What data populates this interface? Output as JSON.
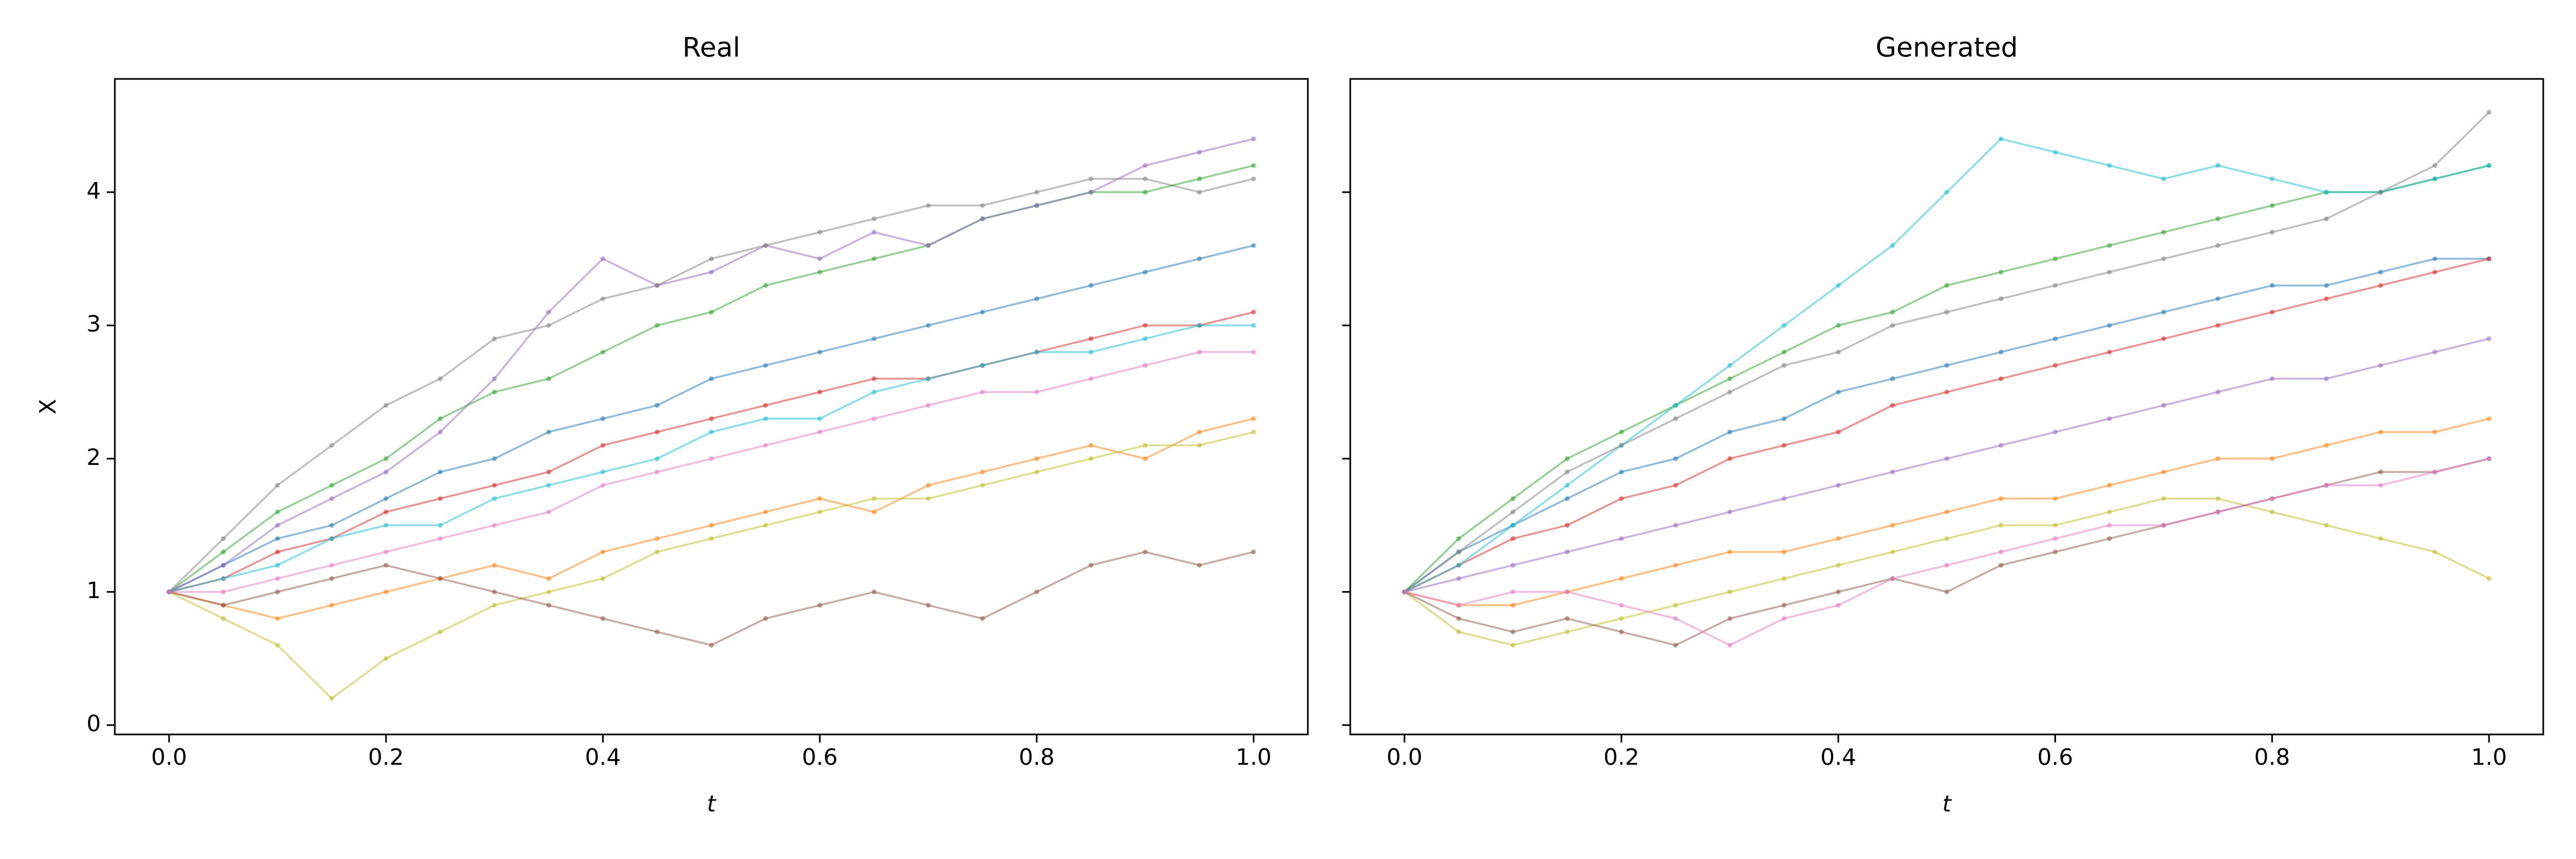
{
  "chart_data": [
    {
      "type": "line",
      "title": "Real",
      "x_label": "t",
      "y_label": "X",
      "x": [
        0,
        0.05,
        0.1,
        0.15,
        0.2,
        0.25,
        0.3,
        0.35,
        0.4,
        0.45,
        0.5,
        0.55,
        0.6,
        0.65,
        0.7,
        0.75,
        0.8,
        0.85,
        0.9,
        0.95,
        1.0
      ],
      "xlim": [
        -0.05,
        1.05
      ],
      "ylim": [
        -0.07,
        4.85
      ],
      "xticks": [
        {
          "value": 0,
          "label": "0.0"
        },
        {
          "value": 0.2,
          "label": "0.2"
        },
        {
          "value": 0.4,
          "label": "0.4"
        },
        {
          "value": 0.6,
          "label": "0.6"
        },
        {
          "value": 0.8,
          "label": "0.8"
        },
        {
          "value": 1.0,
          "label": "1.0"
        }
      ],
      "yticks": [
        0,
        1,
        2,
        3,
        4
      ],
      "series": [
        {
          "color": "#1f77b4",
          "values": [
            1,
            1.2,
            1.4,
            1.5,
            1.7,
            1.9,
            2.0,
            2.2,
            2.3,
            2.4,
            2.6,
            2.7,
            2.8,
            2.9,
            3.0,
            3.1,
            3.2,
            3.3,
            3.4,
            3.5,
            3.6
          ]
        },
        {
          "color": "#ff7f0e",
          "values": [
            1,
            0.9,
            0.8,
            0.9,
            1.0,
            1.1,
            1.2,
            1.1,
            1.3,
            1.4,
            1.5,
            1.6,
            1.7,
            1.6,
            1.8,
            1.9,
            2.0,
            2.1,
            2.0,
            2.2,
            2.3
          ]
        },
        {
          "color": "#2ca02c",
          "values": [
            1,
            1.3,
            1.6,
            1.8,
            2.0,
            2.3,
            2.5,
            2.6,
            2.8,
            3.0,
            3.1,
            3.3,
            3.4,
            3.5,
            3.6,
            3.8,
            3.9,
            4.0,
            4.0,
            4.1,
            4.2
          ]
        },
        {
          "color": "#bcbd22",
          "values": [
            1,
            0.8,
            0.6,
            0.2,
            0.5,
            0.7,
            0.9,
            1.0,
            1.1,
            1.3,
            1.4,
            1.5,
            1.6,
            1.7,
            1.7,
            1.8,
            1.9,
            2.0,
            2.1,
            2.1,
            2.2
          ]
        },
        {
          "color": "#d62728",
          "values": [
            1,
            1.1,
            1.3,
            1.4,
            1.6,
            1.7,
            1.8,
            1.9,
            2.1,
            2.2,
            2.3,
            2.4,
            2.5,
            2.6,
            2.6,
            2.7,
            2.8,
            2.9,
            3.0,
            3.0,
            3.1
          ]
        },
        {
          "color": "#9467bd",
          "values": [
            1,
            1.2,
            1.5,
            1.7,
            1.9,
            2.2,
            2.6,
            3.1,
            3.5,
            3.3,
            3.4,
            3.6,
            3.5,
            3.7,
            3.6,
            3.8,
            3.9,
            4.0,
            4.2,
            4.3,
            4.4
          ]
        },
        {
          "color": "#8c564b",
          "values": [
            1,
            0.9,
            1.0,
            1.1,
            1.2,
            1.1,
            1.0,
            0.9,
            0.8,
            0.7,
            0.6,
            0.8,
            0.9,
            1.0,
            0.9,
            0.8,
            1.0,
            1.2,
            1.3,
            1.2,
            1.3
          ]
        },
        {
          "color": "#17becf",
          "values": [
            1,
            1.1,
            1.2,
            1.4,
            1.5,
            1.5,
            1.7,
            1.8,
            1.9,
            2.0,
            2.2,
            2.3,
            2.3,
            2.5,
            2.6,
            2.7,
            2.8,
            2.8,
            2.9,
            3.0,
            3.0
          ]
        },
        {
          "color": "#7f7f7f",
          "values": [
            1,
            1.4,
            1.8,
            2.1,
            2.4,
            2.6,
            2.9,
            3.0,
            3.2,
            3.3,
            3.5,
            3.6,
            3.7,
            3.8,
            3.9,
            3.9,
            4.0,
            4.1,
            4.1,
            4.0,
            4.1
          ]
        },
        {
          "color": "#e377c2",
          "values": [
            1,
            1.0,
            1.1,
            1.2,
            1.3,
            1.4,
            1.5,
            1.6,
            1.8,
            1.9,
            2.0,
            2.1,
            2.2,
            2.3,
            2.4,
            2.5,
            2.5,
            2.6,
            2.7,
            2.8,
            2.8
          ]
        }
      ]
    },
    {
      "type": "line",
      "title": "Generated",
      "x_label": "t",
      "x": [
        0,
        0.05,
        0.1,
        0.15,
        0.2,
        0.25,
        0.3,
        0.35,
        0.4,
        0.45,
        0.5,
        0.55,
        0.6,
        0.65,
        0.7,
        0.75,
        0.8,
        0.85,
        0.9,
        0.95,
        1.0
      ],
      "xlim": [
        -0.05,
        1.05
      ],
      "ylim": [
        -0.07,
        4.85
      ],
      "xticks": [
        {
          "value": 0,
          "label": "0.0"
        },
        {
          "value": 0.2,
          "label": "0.2"
        },
        {
          "value": 0.4,
          "label": "0.4"
        },
        {
          "value": 0.6,
          "label": "0.6"
        },
        {
          "value": 0.8,
          "label": "0.8"
        },
        {
          "value": 1.0,
          "label": "1.0"
        }
      ],
      "yticks": [
        0,
        1,
        2,
        3,
        4
      ],
      "series": [
        {
          "color": "#1f77b4",
          "values": [
            1,
            1.3,
            1.5,
            1.7,
            1.9,
            2.0,
            2.2,
            2.3,
            2.5,
            2.6,
            2.7,
            2.8,
            2.9,
            3.0,
            3.1,
            3.2,
            3.3,
            3.3,
            3.4,
            3.5,
            3.5
          ]
        },
        {
          "color": "#ff7f0e",
          "values": [
            1,
            0.9,
            0.9,
            1.0,
            1.1,
            1.2,
            1.3,
            1.3,
            1.4,
            1.5,
            1.6,
            1.7,
            1.7,
            1.8,
            1.9,
            2.0,
            2.0,
            2.1,
            2.2,
            2.2,
            2.3
          ]
        },
        {
          "color": "#2ca02c",
          "values": [
            1,
            1.4,
            1.7,
            2.0,
            2.2,
            2.4,
            2.6,
            2.8,
            3.0,
            3.1,
            3.3,
            3.4,
            3.5,
            3.6,
            3.7,
            3.8,
            3.9,
            4.0,
            4.0,
            4.1,
            4.2
          ]
        },
        {
          "color": "#bcbd22",
          "values": [
            1,
            0.7,
            0.6,
            0.7,
            0.8,
            0.9,
            1.0,
            1.1,
            1.2,
            1.3,
            1.4,
            1.5,
            1.5,
            1.6,
            1.7,
            1.7,
            1.6,
            1.5,
            1.4,
            1.3,
            1.1
          ]
        },
        {
          "color": "#d62728",
          "values": [
            1,
            1.2,
            1.4,
            1.5,
            1.7,
            1.8,
            2.0,
            2.1,
            2.2,
            2.4,
            2.5,
            2.6,
            2.7,
            2.8,
            2.9,
            3.0,
            3.1,
            3.2,
            3.3,
            3.4,
            3.5
          ]
        },
        {
          "color": "#17becf",
          "values": [
            1,
            1.2,
            1.5,
            1.8,
            2.1,
            2.4,
            2.7,
            3.0,
            3.3,
            3.6,
            4.0,
            4.4,
            4.3,
            4.2,
            4.1,
            4.2,
            4.1,
            4.0,
            4.0,
            4.1,
            4.2
          ]
        },
        {
          "color": "#8c564b",
          "values": [
            1,
            0.8,
            0.7,
            0.8,
            0.7,
            0.6,
            0.8,
            0.9,
            1.0,
            1.1,
            1.0,
            1.2,
            1.3,
            1.4,
            1.5,
            1.6,
            1.7,
            1.8,
            1.9,
            1.9,
            2.0
          ]
        },
        {
          "color": "#7f7f7f",
          "values": [
            1,
            1.3,
            1.6,
            1.9,
            2.1,
            2.3,
            2.5,
            2.7,
            2.8,
            3.0,
            3.1,
            3.2,
            3.3,
            3.4,
            3.5,
            3.6,
            3.7,
            3.8,
            4.0,
            4.2,
            4.6
          ]
        },
        {
          "color": "#9467bd",
          "values": [
            1,
            1.1,
            1.2,
            1.3,
            1.4,
            1.5,
            1.6,
            1.7,
            1.8,
            1.9,
            2.0,
            2.1,
            2.2,
            2.3,
            2.4,
            2.5,
            2.6,
            2.6,
            2.7,
            2.8,
            2.9
          ]
        },
        {
          "color": "#e377c2",
          "values": [
            1,
            0.9,
            1.0,
            1.0,
            0.9,
            0.8,
            0.6,
            0.8,
            0.9,
            1.1,
            1.2,
            1.3,
            1.4,
            1.5,
            1.5,
            1.6,
            1.7,
            1.8,
            1.8,
            1.9,
            2.0
          ]
        }
      ]
    }
  ]
}
